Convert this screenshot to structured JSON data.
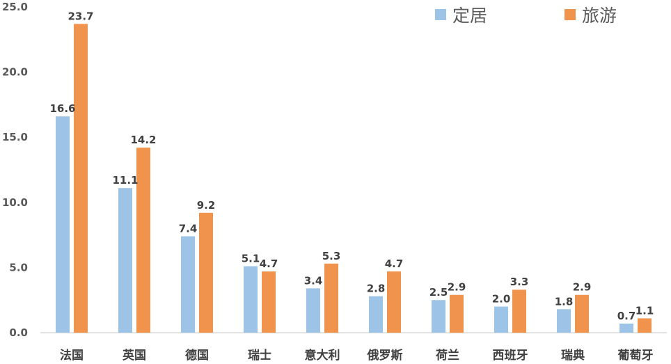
{
  "chart_data": {
    "type": "bar",
    "categories": [
      "法国",
      "英国",
      "德国",
      "瑞士",
      "意大利",
      "俄罗斯",
      "荷兰",
      "西班牙",
      "瑞典",
      "葡萄牙"
    ],
    "series": [
      {
        "name": "定居",
        "color": "#9DC3E6",
        "values": [
          16.6,
          11.1,
          7.4,
          5.1,
          3.4,
          2.8,
          2.5,
          2.0,
          1.8,
          0.7
        ],
        "labels": [
          "16.6",
          "11.1",
          "7.4",
          "5.1",
          "3.4",
          "2.8",
          "2.5",
          "2.0",
          "1.8",
          "0.7"
        ]
      },
      {
        "name": "旅游",
        "color": "#F0944D",
        "values": [
          23.7,
          14.2,
          9.2,
          4.7,
          5.3,
          4.7,
          2.9,
          3.3,
          2.9,
          1.1
        ],
        "labels": [
          "23.7",
          "14.2",
          "9.2",
          "4.7",
          "5.3",
          "4.7",
          "2.9",
          "3.3",
          "2.9",
          "1.1"
        ]
      }
    ],
    "yticks": [
      "0.0",
      "5.0",
      "10.0",
      "15.0",
      "20.0",
      "25.0"
    ],
    "ylim": [
      0,
      25
    ],
    "grid": false,
    "legend_position": "top-right"
  }
}
